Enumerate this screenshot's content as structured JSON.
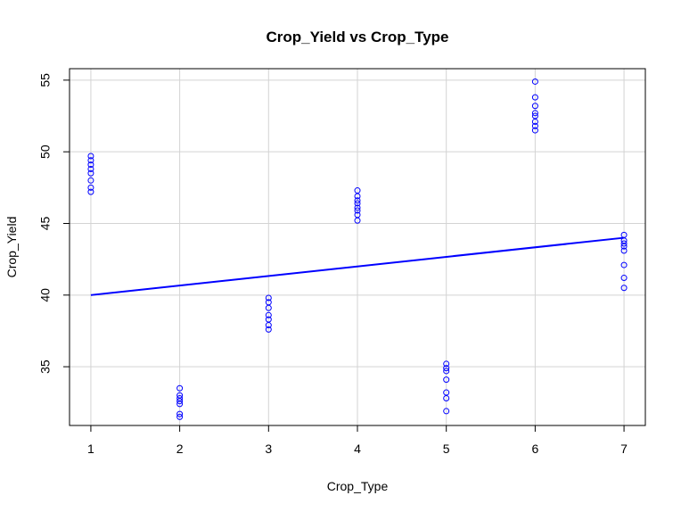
{
  "chart_data": {
    "type": "scatter",
    "title": "Crop_Yield vs Crop_Type",
    "xlabel": "Crop_Type",
    "ylabel": "Crop_Yield",
    "xlim": [
      0.76,
      7.24
    ],
    "ylim": [
      30.9,
      55.8
    ],
    "x_ticks": [
      1,
      2,
      3,
      4,
      5,
      6,
      7
    ],
    "y_ticks": [
      35,
      40,
      45,
      50,
      55
    ],
    "grid": true,
    "legend": "none",
    "colors": {
      "points": "#0000ff",
      "fit_line": "#0000ff",
      "grid": "#d3d3d3",
      "frame": "#000000"
    },
    "points": [
      {
        "x": 1,
        "y": 49.7
      },
      {
        "x": 1,
        "y": 49.4
      },
      {
        "x": 1,
        "y": 49.1
      },
      {
        "x": 1,
        "y": 48.8
      },
      {
        "x": 1,
        "y": 48.5
      },
      {
        "x": 1,
        "y": 48.0
      },
      {
        "x": 1,
        "y": 47.5
      },
      {
        "x": 1,
        "y": 47.2
      },
      {
        "x": 2,
        "y": 33.5
      },
      {
        "x": 2,
        "y": 33.0
      },
      {
        "x": 2,
        "y": 32.8
      },
      {
        "x": 2,
        "y": 32.6
      },
      {
        "x": 2,
        "y": 32.4
      },
      {
        "x": 2,
        "y": 31.7
      },
      {
        "x": 2,
        "y": 31.5
      },
      {
        "x": 3,
        "y": 39.8
      },
      {
        "x": 3,
        "y": 39.5
      },
      {
        "x": 3,
        "y": 39.1
      },
      {
        "x": 3,
        "y": 38.6
      },
      {
        "x": 3,
        "y": 38.3
      },
      {
        "x": 3,
        "y": 37.9
      },
      {
        "x": 3,
        "y": 37.6
      },
      {
        "x": 4,
        "y": 47.3
      },
      {
        "x": 4,
        "y": 46.9
      },
      {
        "x": 4,
        "y": 46.6
      },
      {
        "x": 4,
        "y": 46.4
      },
      {
        "x": 4,
        "y": 46.1
      },
      {
        "x": 4,
        "y": 45.9
      },
      {
        "x": 4,
        "y": 45.6
      },
      {
        "x": 4,
        "y": 45.2
      },
      {
        "x": 5,
        "y": 35.2
      },
      {
        "x": 5,
        "y": 34.9
      },
      {
        "x": 5,
        "y": 34.7
      },
      {
        "x": 5,
        "y": 34.1
      },
      {
        "x": 5,
        "y": 33.2
      },
      {
        "x": 5,
        "y": 32.8
      },
      {
        "x": 5,
        "y": 31.9
      },
      {
        "x": 6,
        "y": 54.9
      },
      {
        "x": 6,
        "y": 53.8
      },
      {
        "x": 6,
        "y": 53.2
      },
      {
        "x": 6,
        "y": 52.7
      },
      {
        "x": 6,
        "y": 52.5
      },
      {
        "x": 6,
        "y": 52.1
      },
      {
        "x": 6,
        "y": 51.8
      },
      {
        "x": 6,
        "y": 51.5
      },
      {
        "x": 7,
        "y": 44.2
      },
      {
        "x": 7,
        "y": 43.8
      },
      {
        "x": 7,
        "y": 43.6
      },
      {
        "x": 7,
        "y": 43.4
      },
      {
        "x": 7,
        "y": 43.1
      },
      {
        "x": 7,
        "y": 42.1
      },
      {
        "x": 7,
        "y": 41.2
      },
      {
        "x": 7,
        "y": 40.5
      }
    ],
    "fit_line": {
      "x": [
        1,
        7
      ],
      "y": [
        40.0,
        44.0
      ]
    }
  }
}
